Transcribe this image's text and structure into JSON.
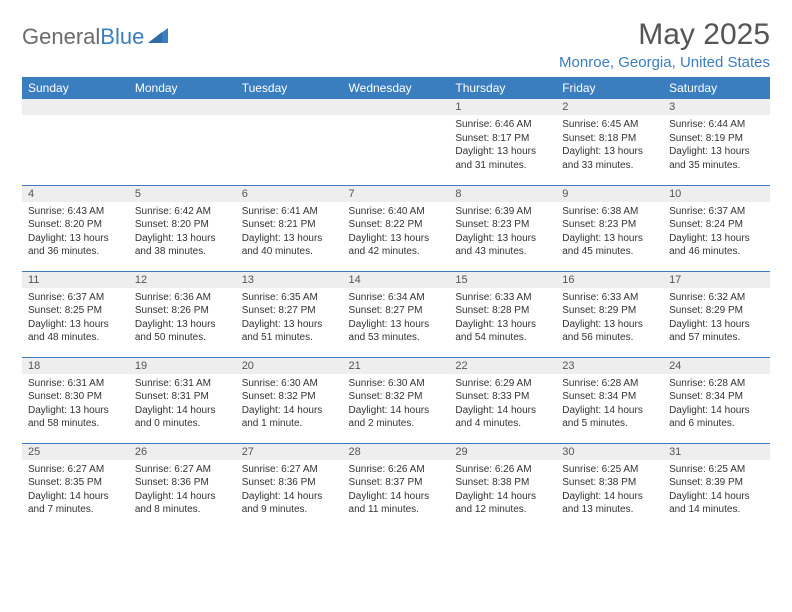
{
  "brand": {
    "part1": "General",
    "part2": "Blue"
  },
  "title": "May 2025",
  "location": "Monroe, Georgia, United States",
  "colors": {
    "header_bg": "#3a7ebf",
    "header_text": "#ffffff",
    "daynum_bg": "#eeeeee",
    "border": "#3a7ebf",
    "title_color": "#555555",
    "location_color": "#3a7ebf",
    "body_text": "#333333"
  },
  "day_headers": [
    "Sunday",
    "Monday",
    "Tuesday",
    "Wednesday",
    "Thursday",
    "Friday",
    "Saturday"
  ],
  "weeks": [
    [
      null,
      null,
      null,
      null,
      {
        "n": "1",
        "sr": "Sunrise: 6:46 AM",
        "ss": "Sunset: 8:17 PM",
        "dl": "Daylight: 13 hours and 31 minutes."
      },
      {
        "n": "2",
        "sr": "Sunrise: 6:45 AM",
        "ss": "Sunset: 8:18 PM",
        "dl": "Daylight: 13 hours and 33 minutes."
      },
      {
        "n": "3",
        "sr": "Sunrise: 6:44 AM",
        "ss": "Sunset: 8:19 PM",
        "dl": "Daylight: 13 hours and 35 minutes."
      }
    ],
    [
      {
        "n": "4",
        "sr": "Sunrise: 6:43 AM",
        "ss": "Sunset: 8:20 PM",
        "dl": "Daylight: 13 hours and 36 minutes."
      },
      {
        "n": "5",
        "sr": "Sunrise: 6:42 AM",
        "ss": "Sunset: 8:20 PM",
        "dl": "Daylight: 13 hours and 38 minutes."
      },
      {
        "n": "6",
        "sr": "Sunrise: 6:41 AM",
        "ss": "Sunset: 8:21 PM",
        "dl": "Daylight: 13 hours and 40 minutes."
      },
      {
        "n": "7",
        "sr": "Sunrise: 6:40 AM",
        "ss": "Sunset: 8:22 PM",
        "dl": "Daylight: 13 hours and 42 minutes."
      },
      {
        "n": "8",
        "sr": "Sunrise: 6:39 AM",
        "ss": "Sunset: 8:23 PM",
        "dl": "Daylight: 13 hours and 43 minutes."
      },
      {
        "n": "9",
        "sr": "Sunrise: 6:38 AM",
        "ss": "Sunset: 8:23 PM",
        "dl": "Daylight: 13 hours and 45 minutes."
      },
      {
        "n": "10",
        "sr": "Sunrise: 6:37 AM",
        "ss": "Sunset: 8:24 PM",
        "dl": "Daylight: 13 hours and 46 minutes."
      }
    ],
    [
      {
        "n": "11",
        "sr": "Sunrise: 6:37 AM",
        "ss": "Sunset: 8:25 PM",
        "dl": "Daylight: 13 hours and 48 minutes."
      },
      {
        "n": "12",
        "sr": "Sunrise: 6:36 AM",
        "ss": "Sunset: 8:26 PM",
        "dl": "Daylight: 13 hours and 50 minutes."
      },
      {
        "n": "13",
        "sr": "Sunrise: 6:35 AM",
        "ss": "Sunset: 8:27 PM",
        "dl": "Daylight: 13 hours and 51 minutes."
      },
      {
        "n": "14",
        "sr": "Sunrise: 6:34 AM",
        "ss": "Sunset: 8:27 PM",
        "dl": "Daylight: 13 hours and 53 minutes."
      },
      {
        "n": "15",
        "sr": "Sunrise: 6:33 AM",
        "ss": "Sunset: 8:28 PM",
        "dl": "Daylight: 13 hours and 54 minutes."
      },
      {
        "n": "16",
        "sr": "Sunrise: 6:33 AM",
        "ss": "Sunset: 8:29 PM",
        "dl": "Daylight: 13 hours and 56 minutes."
      },
      {
        "n": "17",
        "sr": "Sunrise: 6:32 AM",
        "ss": "Sunset: 8:29 PM",
        "dl": "Daylight: 13 hours and 57 minutes."
      }
    ],
    [
      {
        "n": "18",
        "sr": "Sunrise: 6:31 AM",
        "ss": "Sunset: 8:30 PM",
        "dl": "Daylight: 13 hours and 58 minutes."
      },
      {
        "n": "19",
        "sr": "Sunrise: 6:31 AM",
        "ss": "Sunset: 8:31 PM",
        "dl": "Daylight: 14 hours and 0 minutes."
      },
      {
        "n": "20",
        "sr": "Sunrise: 6:30 AM",
        "ss": "Sunset: 8:32 PM",
        "dl": "Daylight: 14 hours and 1 minute."
      },
      {
        "n": "21",
        "sr": "Sunrise: 6:30 AM",
        "ss": "Sunset: 8:32 PM",
        "dl": "Daylight: 14 hours and 2 minutes."
      },
      {
        "n": "22",
        "sr": "Sunrise: 6:29 AM",
        "ss": "Sunset: 8:33 PM",
        "dl": "Daylight: 14 hours and 4 minutes."
      },
      {
        "n": "23",
        "sr": "Sunrise: 6:28 AM",
        "ss": "Sunset: 8:34 PM",
        "dl": "Daylight: 14 hours and 5 minutes."
      },
      {
        "n": "24",
        "sr": "Sunrise: 6:28 AM",
        "ss": "Sunset: 8:34 PM",
        "dl": "Daylight: 14 hours and 6 minutes."
      }
    ],
    [
      {
        "n": "25",
        "sr": "Sunrise: 6:27 AM",
        "ss": "Sunset: 8:35 PM",
        "dl": "Daylight: 14 hours and 7 minutes."
      },
      {
        "n": "26",
        "sr": "Sunrise: 6:27 AM",
        "ss": "Sunset: 8:36 PM",
        "dl": "Daylight: 14 hours and 8 minutes."
      },
      {
        "n": "27",
        "sr": "Sunrise: 6:27 AM",
        "ss": "Sunset: 8:36 PM",
        "dl": "Daylight: 14 hours and 9 minutes."
      },
      {
        "n": "28",
        "sr": "Sunrise: 6:26 AM",
        "ss": "Sunset: 8:37 PM",
        "dl": "Daylight: 14 hours and 11 minutes."
      },
      {
        "n": "29",
        "sr": "Sunrise: 6:26 AM",
        "ss": "Sunset: 8:38 PM",
        "dl": "Daylight: 14 hours and 12 minutes."
      },
      {
        "n": "30",
        "sr": "Sunrise: 6:25 AM",
        "ss": "Sunset: 8:38 PM",
        "dl": "Daylight: 14 hours and 13 minutes."
      },
      {
        "n": "31",
        "sr": "Sunrise: 6:25 AM",
        "ss": "Sunset: 8:39 PM",
        "dl": "Daylight: 14 hours and 14 minutes."
      }
    ]
  ]
}
